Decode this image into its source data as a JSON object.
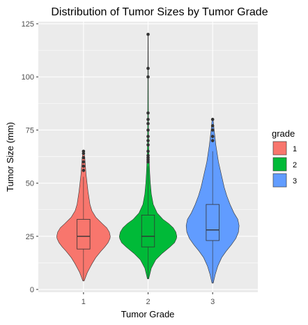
{
  "chart_data": {
    "type": "violin",
    "title": "Distribution of Tumor Sizes by Tumor Grade",
    "xlabel": "Tumor Grade",
    "ylabel": "Tumor Size (mm)",
    "categories": [
      "1",
      "2",
      "3"
    ],
    "yticks": [
      0,
      25,
      50,
      75,
      100,
      125
    ],
    "ylim": [
      -1.3,
      126
    ],
    "grid": true,
    "legend": {
      "title": "grade",
      "position": "right",
      "entries": [
        "1",
        "2",
        "3"
      ]
    },
    "colors": {
      "1": "#F8766D",
      "2": "#00BA38",
      "3": "#619CFF",
      "panel": "#EBEBEB",
      "grid": "#FFFFFF"
    },
    "series": [
      {
        "name": "1",
        "violin": {
          "y": [
            4,
            8,
            12,
            15,
            18,
            20,
            22,
            24,
            25,
            27,
            29,
            31,
            34,
            37,
            40,
            43,
            46,
            50,
            54,
            58,
            62,
            65
          ],
          "half_width": [
            0.01,
            0.06,
            0.13,
            0.19,
            0.27,
            0.33,
            0.38,
            0.41,
            0.415,
            0.4,
            0.36,
            0.29,
            0.19,
            0.13,
            0.1,
            0.085,
            0.07,
            0.055,
            0.04,
            0.03,
            0.02,
            0.006
          ]
        },
        "box": {
          "q1": 19,
          "median": 25,
          "q3": 33,
          "whisker_low": 4,
          "whisker_high": 53
        },
        "outliers": [
          56,
          58,
          60,
          62,
          64,
          65
        ]
      },
      {
        "name": "2",
        "violin": {
          "y": [
            5,
            10,
            14,
            17,
            20,
            22,
            24,
            25,
            27,
            29,
            31,
            33,
            36,
            40,
            45,
            50,
            55,
            60,
            65,
            70,
            80,
            90,
            100,
            110,
            120
          ],
          "half_width": [
            0.01,
            0.05,
            0.12,
            0.22,
            0.34,
            0.41,
            0.44,
            0.445,
            0.43,
            0.39,
            0.32,
            0.23,
            0.14,
            0.08,
            0.05,
            0.035,
            0.025,
            0.018,
            0.012,
            0.009,
            0.006,
            0.005,
            0.004,
            0.003,
            0.002
          ]
        },
        "box": {
          "q1": 20,
          "median": 25,
          "q3": 35,
          "whisker_low": 5,
          "whisker_high": 58
        },
        "outliers": [
          60,
          61,
          62,
          63,
          65,
          68,
          70,
          72,
          75,
          78,
          80,
          83,
          100,
          104,
          120
        ]
      },
      {
        "name": "3",
        "violin": {
          "y": [
            3,
            7,
            11,
            15,
            18,
            21,
            24,
            27,
            30,
            33,
            36,
            40,
            44,
            48,
            52,
            56,
            60,
            64,
            68,
            72,
            76,
            80
          ],
          "half_width": [
            0.01,
            0.04,
            0.08,
            0.14,
            0.21,
            0.29,
            0.36,
            0.4,
            0.41,
            0.39,
            0.33,
            0.27,
            0.22,
            0.18,
            0.15,
            0.12,
            0.09,
            0.07,
            0.05,
            0.035,
            0.02,
            0.008
          ]
        },
        "box": {
          "q1": 23,
          "median": 28,
          "q3": 40,
          "whisker_low": 3,
          "whisker_high": 65
        },
        "outliers": [
          70,
          72,
          75,
          77,
          80
        ]
      }
    ]
  }
}
